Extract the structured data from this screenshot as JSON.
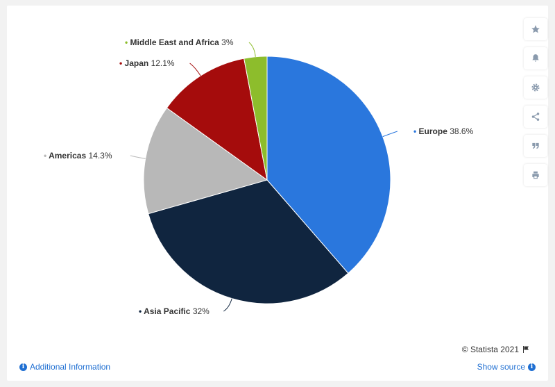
{
  "chart_data": {
    "type": "pie",
    "slices": [
      {
        "label": "Europe",
        "value": 38.6,
        "display": "38.6%",
        "color": "#2a77dd"
      },
      {
        "label": "Asia Pacific",
        "value": 32,
        "display": "32%",
        "color": "#10253f"
      },
      {
        "label": "Americas",
        "value": 14.3,
        "display": "14.3%",
        "color": "#b8b8b8"
      },
      {
        "label": "Japan",
        "value": 12.1,
        "display": "12.1%",
        "color": "#a50c0c"
      },
      {
        "label": "Middle East and Africa",
        "value": 3,
        "display": "3%",
        "color": "#8dbd2c"
      }
    ],
    "start_angle_deg": 0,
    "direction": "clockwise",
    "legend": "none (labels on slices)"
  },
  "toolbar": {
    "icons": [
      "star-icon",
      "bell-icon",
      "gear-icon",
      "share-icon",
      "quote-icon",
      "print-icon"
    ]
  },
  "footer": {
    "credit": "© Statista 2021",
    "additional_info": "Additional Information",
    "show_source": "Show source"
  },
  "colors": {
    "link": "#1f6fd2",
    "background": "#f2f2f2"
  }
}
